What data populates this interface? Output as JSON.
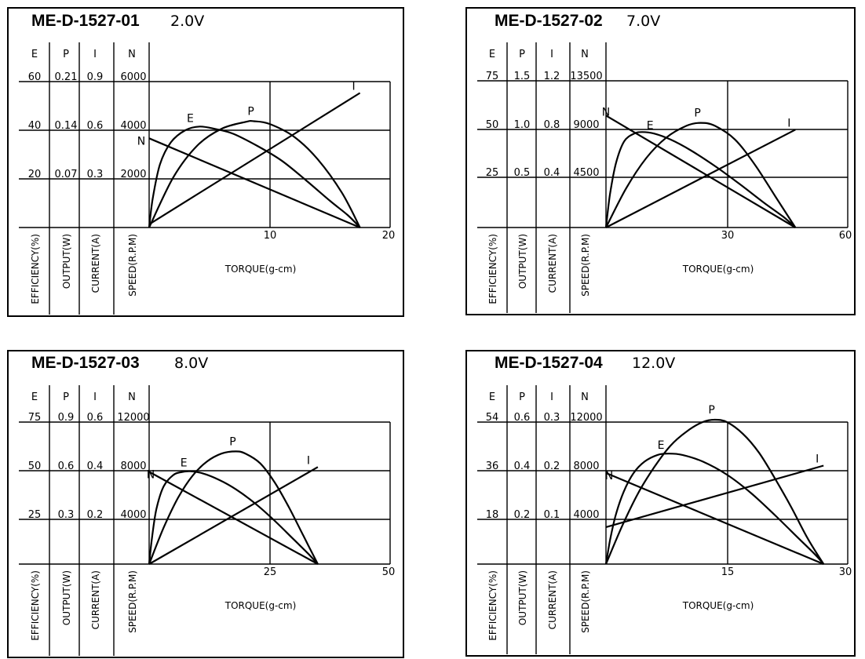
{
  "column_headers": [
    "E",
    "P",
    "I",
    "N"
  ],
  "vertical_labels": [
    "EFFICIENCY(%)",
    "OUTPUT(W)",
    "CURRENT(A)",
    "SPEED(R.P.M)"
  ],
  "chart_data": [
    {
      "type": "line",
      "model": "ME-D-1527-01",
      "voltage": "2.0V",
      "xlabel": "TORQUE(g-cm)",
      "x_ticks": [
        "10",
        "20"
      ],
      "xlim": [
        0,
        20
      ],
      "scale_rows": [
        [
          "60",
          "0.21",
          "0.9",
          "6000"
        ],
        [
          "40",
          "0.14",
          "0.6",
          "4000"
        ],
        [
          "20",
          "0.07",
          "0.3",
          "2000"
        ]
      ],
      "series": [
        {
          "name": "N",
          "x": [
            0,
            17.5
          ],
          "y": [
            3667,
            0
          ],
          "unit": "R.P.M"
        },
        {
          "name": "I",
          "x": [
            0,
            17.5
          ],
          "y": [
            0.02,
            0.83
          ],
          "unit": "A"
        },
        {
          "name": "E",
          "x": [
            0,
            0.3,
            0.9,
            1.8,
            3.0,
            4.2,
            5.5,
            7.0,
            9.0,
            11.0,
            13.0,
            15.0,
            16.5,
            17.5
          ],
          "y": [
            0,
            12,
            26,
            35,
            40,
            41.5,
            40.5,
            38.5,
            33.5,
            27.5,
            19.5,
            11,
            5,
            0
          ],
          "unit": "%"
        },
        {
          "name": "P",
          "x": [
            0,
            2,
            4,
            6,
            8,
            8.7,
            10,
            12,
            14,
            16,
            17.5
          ],
          "y": [
            0,
            0.072,
            0.118,
            0.142,
            0.152,
            0.153,
            0.149,
            0.131,
            0.098,
            0.05,
            0
          ],
          "unit": "W"
        }
      ],
      "curve_labels": [
        "N",
        "E",
        "P",
        "I"
      ]
    },
    {
      "type": "line",
      "model": "ME-D-1527-02",
      "voltage": "7.0V",
      "xlabel": "TORQUE(g-cm)",
      "x_ticks": [
        "30",
        "60"
      ],
      "xlim": [
        0,
        60
      ],
      "scale_rows": [
        [
          "75",
          "1.5",
          "1.2",
          "13500"
        ],
        [
          "50",
          "1.0",
          "0.8",
          "9000"
        ],
        [
          "25",
          "0.5",
          "0.4",
          "4500"
        ]
      ],
      "series": [
        {
          "name": "N",
          "x": [
            0,
            47
          ],
          "y": [
            10300,
            0
          ],
          "unit": "R.P.M"
        },
        {
          "name": "I",
          "x": [
            0,
            47
          ],
          "y": [
            0,
            0.8
          ],
          "unit": "A"
        },
        {
          "name": "E",
          "x": [
            0,
            1,
            2.5,
            4.5,
            7,
            9,
            12,
            16,
            21,
            27,
            33,
            39,
            44,
            47
          ],
          "y": [
            0,
            17,
            33,
            44,
            48,
            48.8,
            48,
            45,
            39.5,
            31.5,
            22.5,
            13,
            5.5,
            0
          ],
          "unit": "%"
        },
        {
          "name": "P",
          "x": [
            0,
            5,
            10,
            15,
            20,
            23.5,
            27,
            32,
            37,
            42,
            47
          ],
          "y": [
            0,
            0.4,
            0.71,
            0.92,
            1.04,
            1.07,
            1.04,
            0.9,
            0.64,
            0.32,
            0
          ],
          "unit": "W"
        }
      ],
      "curve_labels": [
        "N",
        "E",
        "P",
        "I"
      ]
    },
    {
      "type": "line",
      "model": "ME-D-1527-03",
      "voltage": "8.0V",
      "xlabel": "TORQUE(g-cm)",
      "x_ticks": [
        "25",
        "50"
      ],
      "xlim": [
        0,
        50
      ],
      "scale_rows": [
        [
          "75",
          "0.9",
          "0.6",
          "12000"
        ],
        [
          "50",
          "0.6",
          "0.4",
          "8000"
        ],
        [
          "25",
          "0.3",
          "0.2",
          "4000"
        ]
      ],
      "series": [
        {
          "name": "N",
          "x": [
            0,
            35
          ],
          "y": [
            7800,
            0
          ],
          "unit": "R.P.M"
        },
        {
          "name": "I",
          "x": [
            0,
            35
          ],
          "y": [
            0,
            0.41
          ],
          "unit": "A"
        },
        {
          "name": "E",
          "x": [
            0,
            0.6,
            1.5,
            3,
            5,
            6.5,
            8.5,
            11,
            14.5,
            18,
            22,
            26,
            30,
            33,
            35
          ],
          "y": [
            0,
            14,
            29,
            41,
            47,
            48.5,
            49,
            48,
            44.5,
            39.5,
            32,
            23,
            13,
            5.5,
            0
          ],
          "unit": "%"
        },
        {
          "name": "P",
          "x": [
            0,
            3,
            6,
            9,
            12,
            15,
            18,
            20,
            23,
            26,
            29,
            32,
            35
          ],
          "y": [
            0,
            0.23,
            0.42,
            0.56,
            0.65,
            0.7,
            0.714,
            0.7,
            0.64,
            0.52,
            0.36,
            0.18,
            0
          ],
          "unit": "W"
        }
      ],
      "curve_labels": [
        "N",
        "E",
        "P",
        "I"
      ]
    },
    {
      "type": "line",
      "model": "ME-D-1527-04",
      "voltage": "12.0V",
      "xlabel": "TORQUE(g-cm)",
      "x_ticks": [
        "15",
        "30"
      ],
      "xlim": [
        0,
        30
      ],
      "scale_rows": [
        [
          "54",
          "0.6",
          "0.3",
          "12000"
        ],
        [
          "36",
          "0.4",
          "0.2",
          "8000"
        ],
        [
          "18",
          "0.2",
          "0.1",
          "4000"
        ]
      ],
      "series": [
        {
          "name": "N",
          "x": [
            0,
            27
          ],
          "y": [
            7700,
            0
          ],
          "unit": "R.P.M"
        },
        {
          "name": "I",
          "x": [
            0,
            27
          ],
          "y": [
            0.078,
            0.208
          ],
          "unit": "A"
        },
        {
          "name": "E",
          "x": [
            0,
            0.5,
            1.2,
            2.2,
            3.4,
            4.8,
            6.4,
            7.8,
            9.5,
            12,
            15,
            18,
            21,
            24,
            26,
            27
          ],
          "y": [
            0,
            9,
            18.5,
            27.5,
            34.5,
            39,
            41.5,
            42,
            41.5,
            39,
            34,
            27,
            18.5,
            9.5,
            3.5,
            0
          ],
          "unit": "%"
        },
        {
          "name": "P",
          "x": [
            0,
            2,
            4,
            6,
            8,
            10,
            12,
            13.5,
            15,
            17,
            19,
            21,
            23,
            25,
            27
          ],
          "y": [
            0,
            0.16,
            0.3,
            0.41,
            0.5,
            0.56,
            0.6,
            0.61,
            0.6,
            0.55,
            0.47,
            0.36,
            0.24,
            0.11,
            0
          ],
          "unit": "W"
        }
      ],
      "curve_labels": [
        "N",
        "E",
        "P",
        "I"
      ]
    }
  ]
}
